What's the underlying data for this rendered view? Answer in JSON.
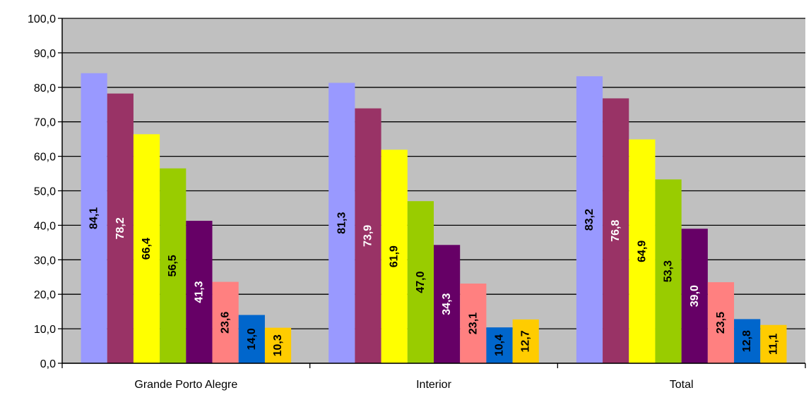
{
  "chart_data": {
    "type": "bar",
    "title": "",
    "xlabel": "",
    "ylabel": "",
    "ylim": [
      0,
      100
    ],
    "y_ticks": [
      "0,0",
      "10,0",
      "20,0",
      "30,0",
      "40,0",
      "50,0",
      "60,0",
      "70,0",
      "80,0",
      "90,0",
      "100,0"
    ],
    "grid": true,
    "legend": "none",
    "categories": [
      "Grande Porto Alegre",
      "Interior",
      "Total"
    ],
    "series": [
      {
        "color": "#9999ff",
        "label_color": "#000000",
        "values": [
          84.1,
          81.3,
          83.2
        ],
        "labels": [
          "84,1",
          "81,3",
          "83,2"
        ]
      },
      {
        "color": "#993366",
        "label_color": "#ffffff",
        "values": [
          78.2,
          73.9,
          76.8
        ],
        "labels": [
          "78,2",
          "73,9",
          "76,8"
        ]
      },
      {
        "color": "#ffff00",
        "label_color": "#000000",
        "values": [
          66.4,
          61.9,
          64.9
        ],
        "labels": [
          "66,4",
          "61,9",
          "64,9"
        ]
      },
      {
        "color": "#99cc00",
        "label_color": "#000000",
        "values": [
          56.5,
          47.0,
          53.3
        ],
        "labels": [
          "56,5",
          "47,0",
          "53,3"
        ]
      },
      {
        "color": "#660066",
        "label_color": "#ffffff",
        "values": [
          41.3,
          34.3,
          39.0
        ],
        "labels": [
          "41,3",
          "34,3",
          "39,0"
        ]
      },
      {
        "color": "#ff8080",
        "label_color": "#000000",
        "values": [
          23.6,
          23.1,
          23.5
        ],
        "labels": [
          "23,6",
          "23,1",
          "23,5"
        ]
      },
      {
        "color": "#0066cc",
        "label_color": "#000000",
        "values": [
          14.0,
          10.4,
          12.8
        ],
        "labels": [
          "14,0",
          "10,4",
          "12,8"
        ]
      },
      {
        "color": "#ffcc00",
        "label_color": "#000000",
        "values": [
          10.3,
          12.7,
          11.1
        ],
        "labels": [
          "10,3",
          "12,7",
          "11,1"
        ]
      }
    ],
    "colors": {
      "plot_background": "#c0c0c0",
      "gridline": "#000000",
      "axis": "#000000"
    }
  }
}
